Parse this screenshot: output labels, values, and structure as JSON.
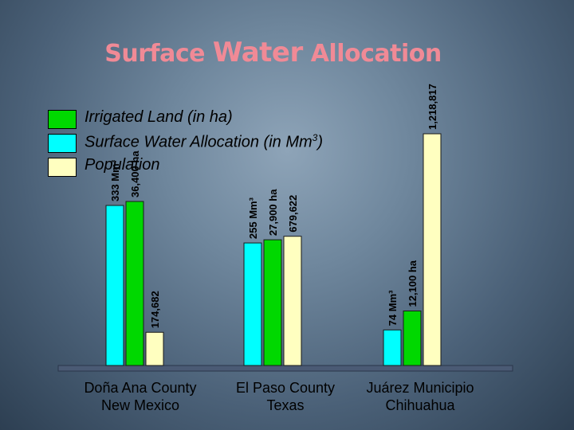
{
  "title": {
    "pre": "Surface ",
    "big": "Water",
    "post": " Allocation"
  },
  "legend": [
    {
      "label": "Irrigated Land (in ha)",
      "sup": "",
      "suffix": "",
      "color": "#00d800"
    },
    {
      "label": "Surface Water Allocation (in Mm",
      "sup": "3",
      "suffix": ")",
      "color": "#00ffff"
    },
    {
      "label": "Population",
      "sup": "",
      "suffix": "",
      "color": "#ffffc0"
    }
  ],
  "chart_data": {
    "type": "bar",
    "categories": [
      {
        "line1": "Doña Ana County",
        "line2": "New Mexico"
      },
      {
        "line1": "El Paso County",
        "line2": "Texas"
      },
      {
        "line1": "Juárez Municipio",
        "line2": "Chihuahua"
      }
    ],
    "series": [
      {
        "name": "Surface Water Allocation (in Mm3)",
        "color": "#00ffff",
        "values": [
          333,
          255,
          74
        ],
        "labels": [
          "333 Mm³",
          "255 Mm³",
          "74 Mm³"
        ]
      },
      {
        "name": "Irrigated Land (in ha)",
        "color": "#00d800",
        "values": [
          36400,
          27900,
          12100
        ],
        "labels": [
          "36,400 ha",
          "27,900 ha",
          "12,100 ha"
        ]
      },
      {
        "name": "Population",
        "color": "#ffffc0",
        "values": [
          174682,
          679622,
          1218817
        ],
        "labels": [
          "174,682",
          "679,622",
          "1,218,817"
        ]
      }
    ],
    "grid": false,
    "legend_position": "top-left"
  }
}
